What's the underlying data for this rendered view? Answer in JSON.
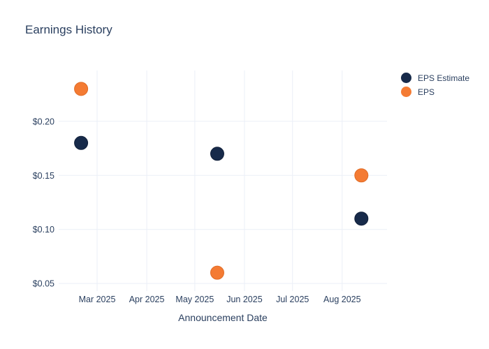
{
  "chart_data": {
    "type": "scatter",
    "title": "Earnings History",
    "xlabel": "Announcement Date",
    "ylabel": "",
    "grid": true,
    "legend_position": "outside-top-right",
    "background_color": "#ffffff",
    "grid_color": "#ebeff7",
    "text_color": "#2a3f5f",
    "xlim": [
      "2025-02-05",
      "2025-08-29"
    ],
    "ylim": [
      0.043,
      0.247
    ],
    "x_ticks": [
      {
        "date": "2025-03-01",
        "label": "Mar 2025"
      },
      {
        "date": "2025-04-01",
        "label": "Apr 2025"
      },
      {
        "date": "2025-05-01",
        "label": "May 2025"
      },
      {
        "date": "2025-06-01",
        "label": "Jun 2025"
      },
      {
        "date": "2025-07-01",
        "label": "Jul 2025"
      },
      {
        "date": "2025-08-01",
        "label": "Aug 2025"
      }
    ],
    "y_ticks": [
      {
        "value": 0.2,
        "label": "$0.20"
      },
      {
        "value": 0.15,
        "label": "$0.15"
      },
      {
        "value": 0.1,
        "label": "$0.10"
      },
      {
        "value": 0.05,
        "label": "$0.05"
      }
    ],
    "series": [
      {
        "name": "EPS Estimate",
        "color": "#172a4a",
        "stroke": "#11203a",
        "points": [
          {
            "date": "2025-02-19",
            "value": 0.18
          },
          {
            "date": "2025-05-15",
            "value": 0.17
          },
          {
            "date": "2025-08-13",
            "value": 0.11
          }
        ]
      },
      {
        "name": "EPS",
        "color": "#f47b33",
        "stroke": "#e06c26",
        "points": [
          {
            "date": "2025-02-19",
            "value": 0.23
          },
          {
            "date": "2025-05-15",
            "value": 0.06
          },
          {
            "date": "2025-08-13",
            "value": 0.15
          }
        ]
      }
    ]
  }
}
